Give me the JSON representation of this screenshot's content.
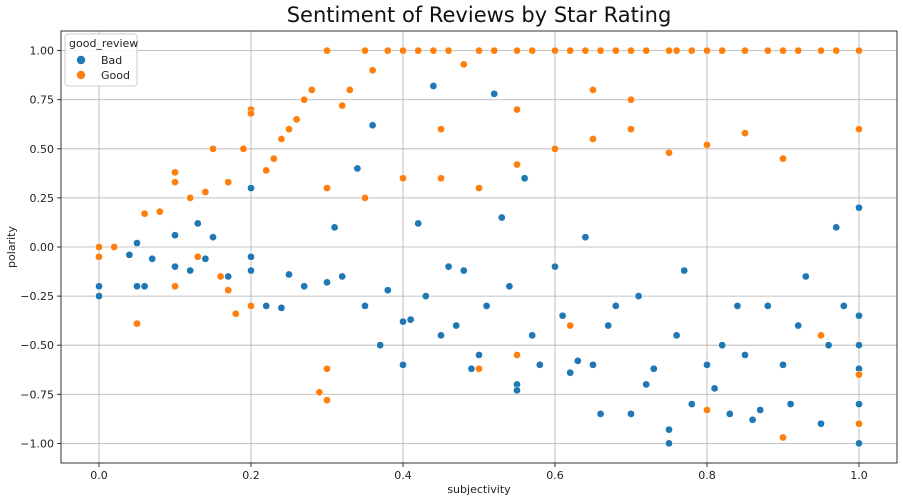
{
  "chart_data": {
    "type": "scatter",
    "title": "Sentiment of Reviews by Star Rating",
    "xlabel": "subjectivity",
    "ylabel": "polarity",
    "xlim": [
      -0.05,
      1.05
    ],
    "ylim": [
      -1.1,
      1.1
    ],
    "xticks": [
      0.0,
      0.2,
      0.4,
      0.6,
      0.8,
      1.0
    ],
    "yticks": [
      -1.0,
      -0.75,
      -0.5,
      -0.25,
      0.0,
      0.25,
      0.5,
      0.75,
      1.0
    ],
    "xtick_labels": [
      "0.0",
      "0.2",
      "0.4",
      "0.6",
      "0.8",
      "1.0"
    ],
    "ytick_labels": [
      "−1.00",
      "−0.75",
      "−0.50",
      "−0.25",
      "0.00",
      "0.25",
      "0.50",
      "0.75",
      "1.00"
    ],
    "grid": true,
    "legend": {
      "title": "good_review",
      "placement": "top-left",
      "entries": [
        "Bad",
        "Good"
      ]
    },
    "series": [
      {
        "name": "Bad",
        "color": "#1f77b4",
        "points": [
          [
            0.0,
            -0.2
          ],
          [
            0.0,
            -0.25
          ],
          [
            0.04,
            -0.04
          ],
          [
            0.05,
            0.02
          ],
          [
            0.05,
            -0.2
          ],
          [
            0.06,
            -0.2
          ],
          [
            0.07,
            -0.06
          ],
          [
            0.1,
            0.06
          ],
          [
            0.1,
            -0.1
          ],
          [
            0.12,
            -0.12
          ],
          [
            0.13,
            0.12
          ],
          [
            0.14,
            -0.06
          ],
          [
            0.15,
            0.05
          ],
          [
            0.17,
            -0.15
          ],
          [
            0.2,
            0.3
          ],
          [
            0.2,
            -0.05
          ],
          [
            0.2,
            -0.12
          ],
          [
            0.22,
            -0.3
          ],
          [
            0.24,
            -0.31
          ],
          [
            0.25,
            -0.14
          ],
          [
            0.27,
            -0.2
          ],
          [
            0.3,
            -0.18
          ],
          [
            0.31,
            0.1
          ],
          [
            0.32,
            -0.15
          ],
          [
            0.34,
            0.4
          ],
          [
            0.35,
            -0.3
          ],
          [
            0.36,
            0.62
          ],
          [
            0.37,
            -0.5
          ],
          [
            0.38,
            -0.22
          ],
          [
            0.4,
            -0.6
          ],
          [
            0.4,
            -0.38
          ],
          [
            0.41,
            -0.37
          ],
          [
            0.42,
            0.12
          ],
          [
            0.43,
            -0.25
          ],
          [
            0.44,
            0.82
          ],
          [
            0.45,
            -0.45
          ],
          [
            0.46,
            -0.1
          ],
          [
            0.47,
            -0.4
          ],
          [
            0.48,
            -0.12
          ],
          [
            0.49,
            -0.62
          ],
          [
            0.5,
            -0.55
          ],
          [
            0.51,
            -0.3
          ],
          [
            0.52,
            0.78
          ],
          [
            0.53,
            0.15
          ],
          [
            0.54,
            -0.2
          ],
          [
            0.55,
            -0.7
          ],
          [
            0.55,
            -0.73
          ],
          [
            0.56,
            0.35
          ],
          [
            0.57,
            -0.45
          ],
          [
            0.58,
            -0.6
          ],
          [
            0.6,
            -0.1
          ],
          [
            0.61,
            -0.35
          ],
          [
            0.62,
            -0.64
          ],
          [
            0.63,
            -0.58
          ],
          [
            0.64,
            0.05
          ],
          [
            0.65,
            -0.6
          ],
          [
            0.66,
            -0.85
          ],
          [
            0.67,
            -0.4
          ],
          [
            0.68,
            -0.3
          ],
          [
            0.7,
            -0.85
          ],
          [
            0.71,
            -0.25
          ],
          [
            0.72,
            -0.7
          ],
          [
            0.73,
            -0.62
          ],
          [
            0.75,
            -0.93
          ],
          [
            0.75,
            -1.0
          ],
          [
            0.76,
            -0.45
          ],
          [
            0.77,
            -0.12
          ],
          [
            0.78,
            -0.8
          ],
          [
            0.8,
            -0.6
          ],
          [
            0.81,
            -0.72
          ],
          [
            0.82,
            -0.5
          ],
          [
            0.83,
            -0.85
          ],
          [
            0.84,
            -0.3
          ],
          [
            0.85,
            -0.55
          ],
          [
            0.86,
            -0.88
          ],
          [
            0.87,
            -0.83
          ],
          [
            0.88,
            -0.3
          ],
          [
            0.9,
            -0.6
          ],
          [
            0.91,
            -0.8
          ],
          [
            0.92,
            -0.4
          ],
          [
            0.93,
            -0.15
          ],
          [
            0.95,
            -0.9
          ],
          [
            0.96,
            -0.5
          ],
          [
            0.97,
            0.1
          ],
          [
            0.98,
            -0.3
          ],
          [
            1.0,
            -1.0
          ],
          [
            1.0,
            -0.8
          ],
          [
            1.0,
            -0.5
          ],
          [
            1.0,
            -0.62
          ],
          [
            1.0,
            -0.35
          ],
          [
            1.0,
            0.2
          ]
        ]
      },
      {
        "name": "Good",
        "color": "#ff7f0e",
        "points": [
          [
            0.0,
            0.0
          ],
          [
            0.0,
            -0.05
          ],
          [
            0.02,
            0.0
          ],
          [
            0.05,
            -0.39
          ],
          [
            0.06,
            0.17
          ],
          [
            0.08,
            0.18
          ],
          [
            0.1,
            0.38
          ],
          [
            0.1,
            0.33
          ],
          [
            0.1,
            -0.2
          ],
          [
            0.12,
            0.25
          ],
          [
            0.13,
            -0.05
          ],
          [
            0.14,
            0.28
          ],
          [
            0.15,
            0.5
          ],
          [
            0.16,
            -0.15
          ],
          [
            0.17,
            0.33
          ],
          [
            0.17,
            -0.22
          ],
          [
            0.18,
            -0.34
          ],
          [
            0.19,
            0.5
          ],
          [
            0.2,
            0.7
          ],
          [
            0.2,
            0.68
          ],
          [
            0.2,
            -0.3
          ],
          [
            0.22,
            0.39
          ],
          [
            0.23,
            0.45
          ],
          [
            0.24,
            0.55
          ],
          [
            0.25,
            0.6
          ],
          [
            0.26,
            0.65
          ],
          [
            0.27,
            0.75
          ],
          [
            0.28,
            0.8
          ],
          [
            0.29,
            -0.74
          ],
          [
            0.3,
            -0.78
          ],
          [
            0.3,
            -0.62
          ],
          [
            0.3,
            1.0
          ],
          [
            0.32,
            0.72
          ],
          [
            0.33,
            0.8
          ],
          [
            0.35,
            1.0
          ],
          [
            0.36,
            0.9
          ],
          [
            0.38,
            1.0
          ],
          [
            0.4,
            1.0
          ],
          [
            0.42,
            1.0
          ],
          [
            0.44,
            1.0
          ],
          [
            0.46,
            1.0
          ],
          [
            0.48,
            0.93
          ],
          [
            0.5,
            1.0
          ],
          [
            0.52,
            1.0
          ],
          [
            0.55,
            1.0
          ],
          [
            0.57,
            1.0
          ],
          [
            0.6,
            1.0
          ],
          [
            0.62,
            1.0
          ],
          [
            0.64,
            1.0
          ],
          [
            0.66,
            1.0
          ],
          [
            0.68,
            1.0
          ],
          [
            0.7,
            1.0
          ],
          [
            0.72,
            1.0
          ],
          [
            0.75,
            1.0
          ],
          [
            0.76,
            1.0
          ],
          [
            0.78,
            1.0
          ],
          [
            0.8,
            1.0
          ],
          [
            0.82,
            1.0
          ],
          [
            0.85,
            1.0
          ],
          [
            0.88,
            1.0
          ],
          [
            0.9,
            1.0
          ],
          [
            0.92,
            1.0
          ],
          [
            0.95,
            1.0
          ],
          [
            0.97,
            1.0
          ],
          [
            1.0,
            1.0
          ],
          [
            1.0,
            0.6
          ],
          [
            1.0,
            -0.65
          ],
          [
            1.0,
            -0.9
          ],
          [
            0.95,
            -0.45
          ],
          [
            0.8,
            -0.83
          ],
          [
            0.9,
            -0.97
          ],
          [
            0.62,
            -0.4
          ],
          [
            0.55,
            -0.55
          ],
          [
            0.5,
            -0.62
          ],
          [
            0.45,
            0.35
          ],
          [
            0.55,
            0.42
          ],
          [
            0.6,
            0.5
          ],
          [
            0.65,
            0.55
          ],
          [
            0.7,
            0.6
          ],
          [
            0.75,
            0.48
          ],
          [
            0.8,
            0.52
          ],
          [
            0.85,
            0.58
          ],
          [
            0.9,
            0.45
          ],
          [
            0.5,
            0.3
          ],
          [
            0.4,
            0.35
          ],
          [
            0.35,
            0.25
          ],
          [
            0.3,
            0.3
          ],
          [
            0.45,
            0.6
          ],
          [
            0.55,
            0.7
          ],
          [
            0.65,
            0.8
          ],
          [
            0.7,
            0.75
          ]
        ]
      }
    ]
  }
}
